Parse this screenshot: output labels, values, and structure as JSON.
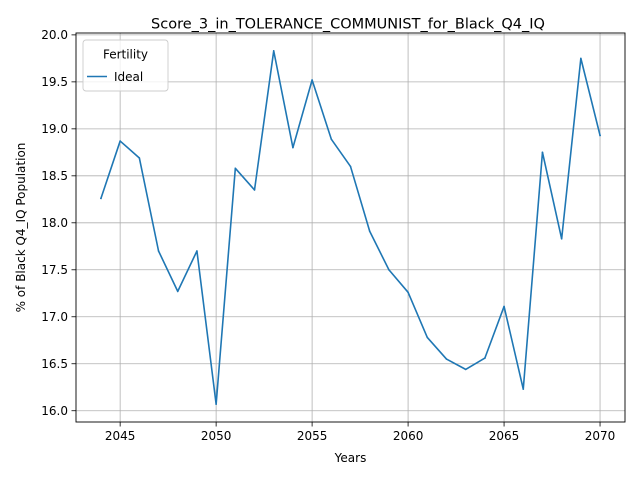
{
  "chart_data": {
    "type": "line",
    "title": "Score_3_in_TOLERANCE_COMMUNIST_for_Black_Q4_IQ",
    "xlabel": "Years",
    "ylabel": "% of Black Q4_IQ Population",
    "xlim": [
      2042.7,
      2071.3
    ],
    "ylim": [
      15.88,
      20.02
    ],
    "xticks": [
      2045,
      2050,
      2055,
      2060,
      2065,
      2070
    ],
    "yticks": [
      16.0,
      16.5,
      17.0,
      17.5,
      18.0,
      18.5,
      19.0,
      19.5,
      20.0
    ],
    "ytick_labels": [
      "16.0",
      "16.5",
      "17.0",
      "17.5",
      "18.0",
      "18.5",
      "19.0",
      "19.5",
      "20.0"
    ],
    "grid": true,
    "legend": {
      "title": "Fertility",
      "position": "top-left"
    },
    "series": [
      {
        "name": "Ideal",
        "color": "#1f77b4",
        "x": [
          2044,
          2045,
          2046,
          2047,
          2048,
          2049,
          2050,
          2051,
          2052,
          2053,
          2054,
          2055,
          2056,
          2057,
          2058,
          2059,
          2060,
          2061,
          2062,
          2063,
          2064,
          2065,
          2066,
          2067,
          2068,
          2069,
          2070
        ],
        "y": [
          18.26,
          18.87,
          18.69,
          17.7,
          17.27,
          17.7,
          16.07,
          18.58,
          18.35,
          19.83,
          18.8,
          19.52,
          18.89,
          18.6,
          17.91,
          17.5,
          17.26,
          16.78,
          16.55,
          16.44,
          16.56,
          17.11,
          16.23,
          18.75,
          17.83,
          19.75,
          18.93
        ]
      }
    ]
  }
}
